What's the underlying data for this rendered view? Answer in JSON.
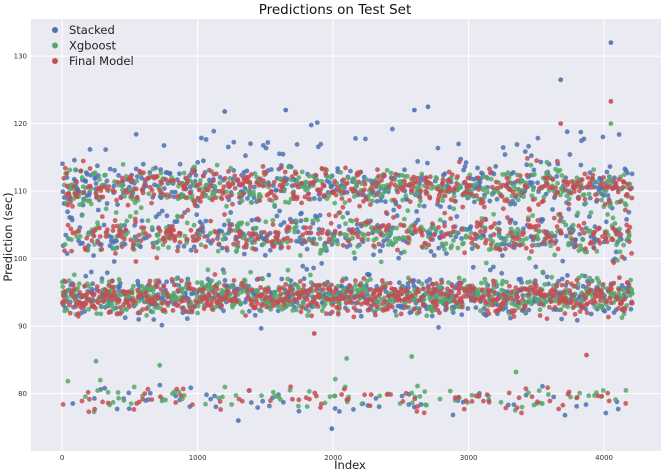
{
  "chart_data": {
    "type": "scatter",
    "title": "Predictions on Test Set",
    "xlabel": "Index",
    "ylabel": "Prediction (sec)",
    "xlim": [
      -230,
      4420
    ],
    "ylim": [
      71.5,
      135.5
    ],
    "xticks": [
      0,
      1000,
      2000,
      3000,
      4000
    ],
    "yticks": [
      80,
      90,
      100,
      110,
      120,
      130
    ],
    "grid": true,
    "legend_position": "top-left",
    "x_count": 4209,
    "series": [
      {
        "name": "Stacked",
        "color": "#4C72B0",
        "bands": [
          {
            "center": 94.5,
            "spread": 2.4,
            "share": 0.4
          },
          {
            "center": 103.5,
            "spread": 2.6,
            "share": 0.22
          },
          {
            "center": 111.0,
            "spread": 2.8,
            "share": 0.3
          },
          {
            "center": 117.5,
            "spread": 2.0,
            "share": 0.04
          },
          {
            "center": 78.8,
            "spread": 1.4,
            "share": 0.04
          }
        ],
        "outliers": [
          [
            4050,
            132.0
          ],
          [
            3680,
            126.5
          ],
          [
            2700,
            122.5
          ],
          [
            2600,
            122.0
          ],
          [
            1200,
            121.8
          ],
          [
            1650,
            122.0
          ],
          [
            1990,
            74.8
          ],
          [
            1300,
            76.0
          ],
          [
            2600,
            78.0
          ]
        ]
      },
      {
        "name": "Xgboost",
        "color": "#55A868",
        "bands": [
          {
            "center": 94.5,
            "spread": 2.2,
            "share": 0.42
          },
          {
            "center": 103.5,
            "spread": 2.4,
            "share": 0.22
          },
          {
            "center": 110.5,
            "spread": 2.5,
            "share": 0.3
          },
          {
            "center": 79.5,
            "spread": 1.6,
            "share": 0.06
          }
        ],
        "outliers": [
          [
            4050,
            120.0
          ],
          [
            2100,
            85.2
          ],
          [
            2580,
            85.5
          ],
          [
            250,
            84.8
          ],
          [
            720,
            84.2
          ],
          [
            3350,
            83.2
          ]
        ]
      },
      {
        "name": "Final Model",
        "color": "#C44E52",
        "bands": [
          {
            "center": 94.3,
            "spread": 2.1,
            "share": 0.42
          },
          {
            "center": 103.5,
            "spread": 2.3,
            "share": 0.22
          },
          {
            "center": 110.5,
            "spread": 2.4,
            "share": 0.3
          },
          {
            "center": 79.2,
            "spread": 1.5,
            "share": 0.06
          }
        ],
        "outliers": [
          [
            4050,
            123.3
          ],
          [
            3680,
            120.0
          ],
          [
            1860,
            88.9
          ],
          [
            3870,
            85.7
          ]
        ]
      }
    ]
  }
}
